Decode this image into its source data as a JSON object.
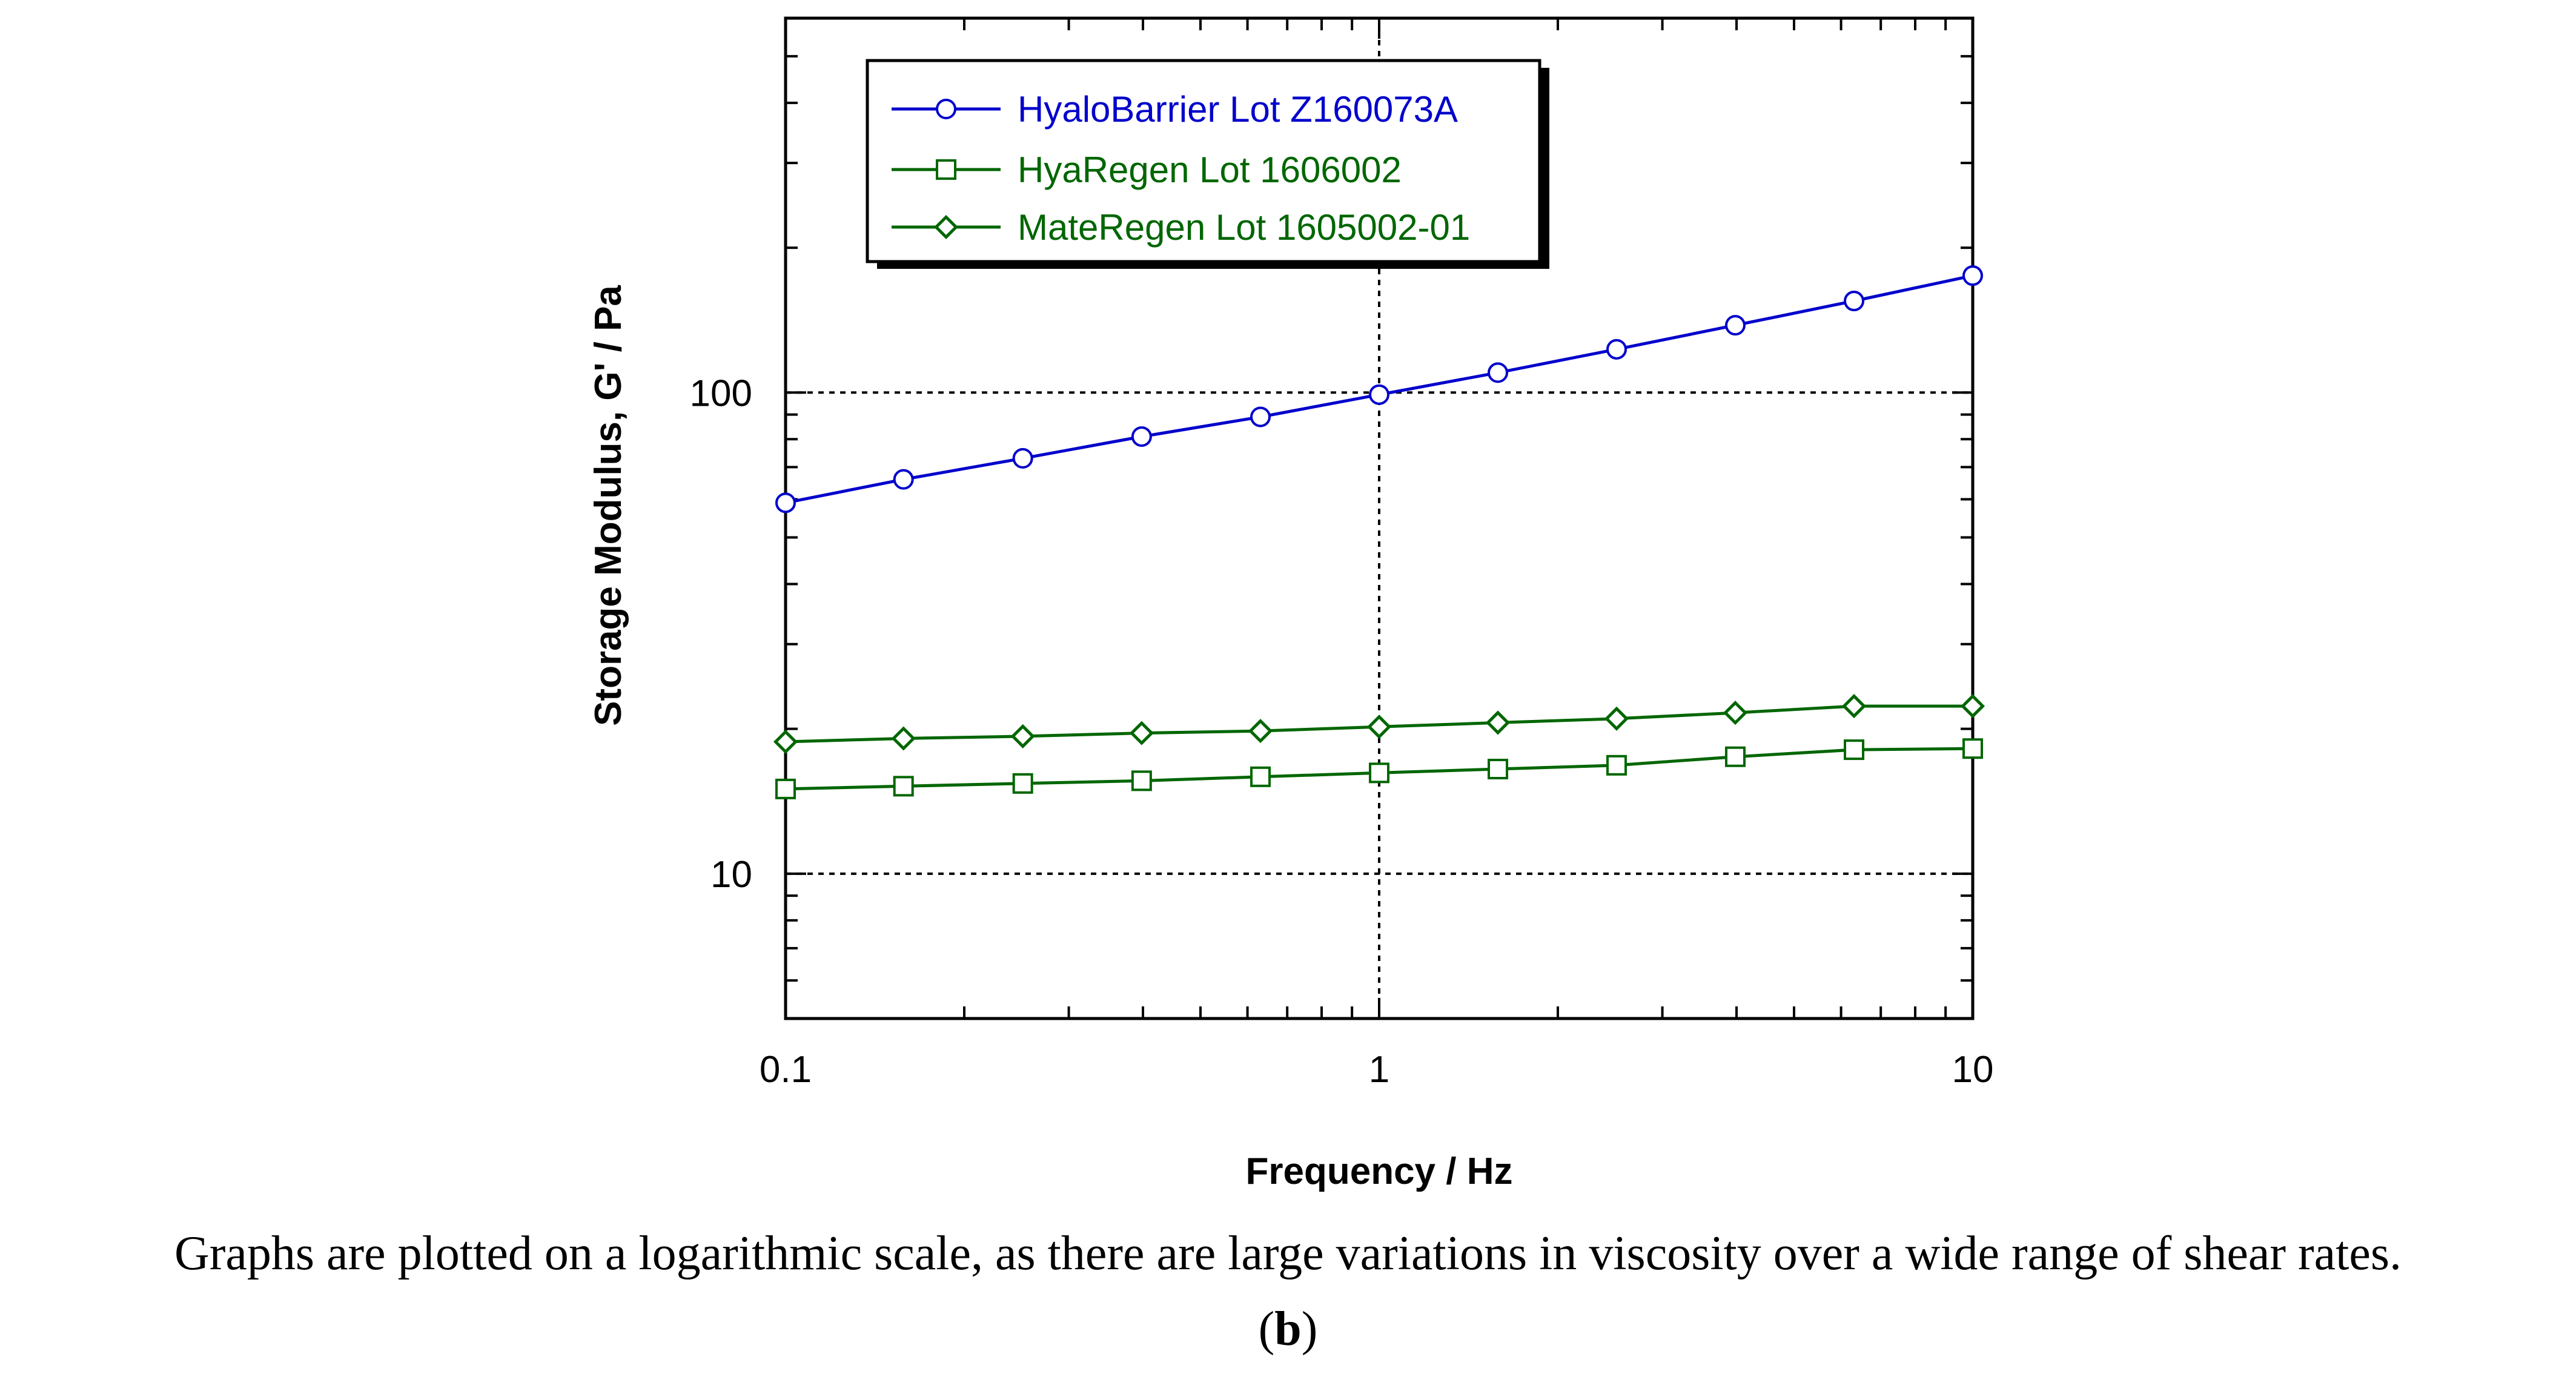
{
  "chart_data": {
    "type": "line",
    "xscale": "log",
    "yscale": "log",
    "xlim": [
      0.1,
      10
    ],
    "ylim": [
      5,
      600
    ],
    "xlabel": "Frequency / Hz",
    "ylabel": "Storage Modulus, G' / Pa",
    "x_tick_labels": [
      {
        "value": 0.1,
        "label": "0.1"
      },
      {
        "value": 1,
        "label": "1"
      },
      {
        "value": 10,
        "label": "10"
      }
    ],
    "y_tick_labels": [
      {
        "value": 10,
        "label": "10"
      },
      {
        "value": 100,
        "label": "100"
      }
    ],
    "grid": "dotted at major decades",
    "legend_position": "top-left",
    "x": [
      0.1,
      0.158,
      0.251,
      0.398,
      0.631,
      1.0,
      1.585,
      2.512,
      3.981,
      6.31,
      10.0
    ],
    "series": [
      {
        "name": "HyaloBarrier Lot Z160073A",
        "marker": "circle",
        "color": "#0000cc",
        "values": [
          59,
          66,
          73,
          81,
          89,
          99,
          110,
          123,
          138,
          155,
          175
        ]
      },
      {
        "name": "HyaRegen Lot 1606002",
        "marker": "square",
        "color": "#006600",
        "values": [
          15.0,
          15.2,
          15.4,
          15.6,
          15.9,
          16.2,
          16.5,
          16.8,
          17.5,
          18.1,
          18.2
        ]
      },
      {
        "name": "MateRegen Lot 1605002-01",
        "marker": "diamond",
        "color": "#006600",
        "values": [
          18.8,
          19.1,
          19.3,
          19.6,
          19.8,
          20.2,
          20.6,
          21.0,
          21.6,
          22.3,
          22.3
        ]
      }
    ]
  },
  "caption": {
    "text": "Graphs are plotted on a logarithmic scale, as there are large variations in viscosity over a wide range of shear rates.",
    "label_open": "(",
    "label_letter": "b",
    "label_close": ")"
  }
}
